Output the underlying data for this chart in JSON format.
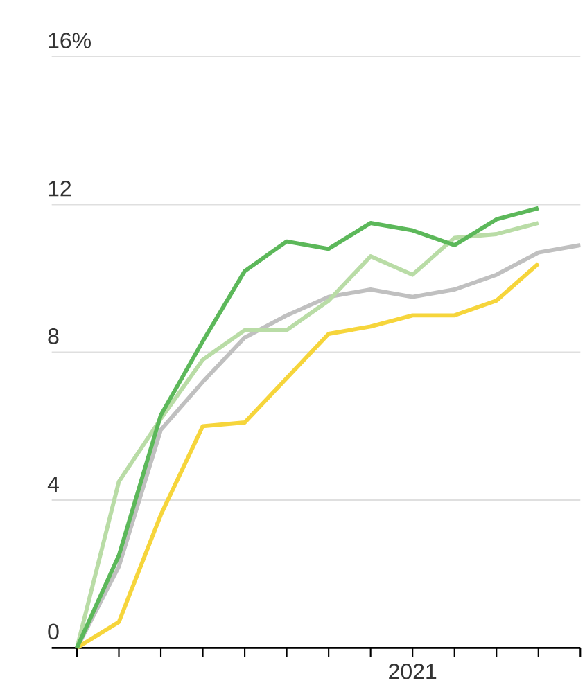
{
  "chart_data": {
    "type": "line",
    "categories": [
      null,
      null,
      null,
      null,
      null,
      null,
      null,
      null,
      "2021",
      null,
      null,
      null,
      null
    ],
    "series": [
      {
        "color": "#c0c0c0",
        "values": [
          0,
          2.2,
          5.9,
          7.2,
          8.4,
          9.0,
          9.5,
          9.7,
          9.5,
          9.7,
          10.1,
          10.7,
          10.9
        ]
      },
      {
        "color": "#f6d53b",
        "values": [
          0,
          0.7,
          3.6,
          6.0,
          6.1,
          7.3,
          8.5,
          8.7,
          9.0,
          9.0,
          9.4,
          10.4,
          null
        ]
      },
      {
        "color": "#b9dca6",
        "values": [
          0,
          4.5,
          6.2,
          7.8,
          8.6,
          8.6,
          9.4,
          10.6,
          10.1,
          11.1,
          11.2,
          11.5,
          null
        ]
      },
      {
        "color": "#5cb85a",
        "values": [
          0,
          2.5,
          6.3,
          8.3,
          10.2,
          11.0,
          10.8,
          11.5,
          11.3,
          10.9,
          11.6,
          11.9,
          null
        ]
      }
    ],
    "ylim": [
      0,
      16
    ],
    "yticks": [
      0,
      4,
      8,
      12,
      {
        "value": 16,
        "label": "16%"
      }
    ],
    "grid": "y",
    "marker": "none",
    "line_style": "solid"
  }
}
